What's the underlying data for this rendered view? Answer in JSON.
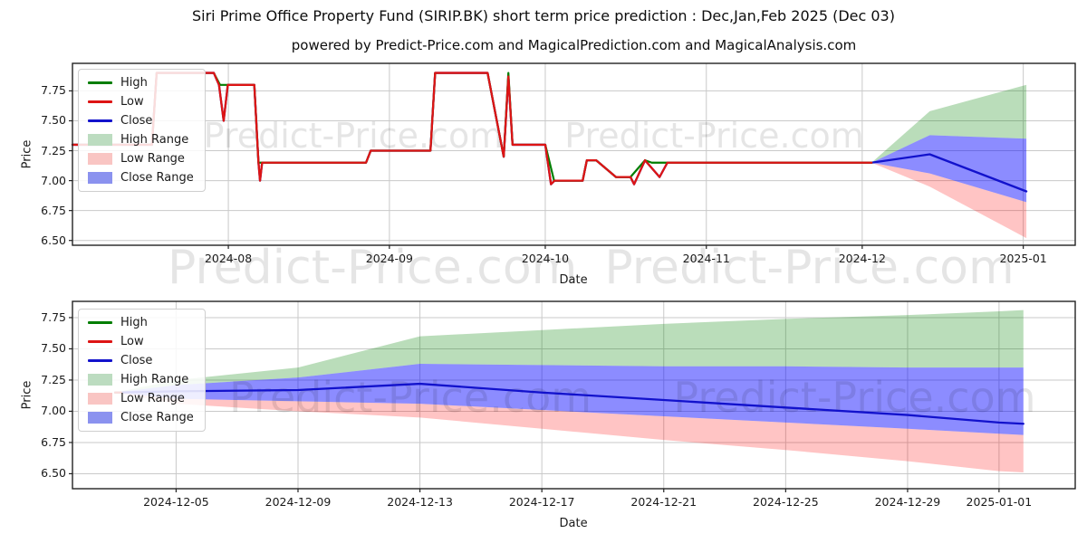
{
  "figure": {
    "title": "Siri Prime Office Property Fund (SIRIP.BK) short term price prediction : Dec,Jan,Feb 2025 (Dec 03)",
    "subtitle": "powered by Predict-Price.com and MagicalPrediction.com and MagicalAnalysis.com",
    "watermark": "Predict-Price.com",
    "background": "#ffffff",
    "gridline_color": "#c9c9c9",
    "spine_color": "#222222"
  },
  "legend": {
    "entries": [
      {
        "label": "High",
        "swatch": "line",
        "color": "#007d00"
      },
      {
        "label": "Low",
        "swatch": "line",
        "color": "#dd1414"
      },
      {
        "label": "Close",
        "swatch": "line",
        "color": "#1212cc"
      },
      {
        "label": "High Range",
        "swatch": "patch",
        "color": "#bcdcc0"
      },
      {
        "label": "Low Range",
        "swatch": "patch",
        "color": "#f9c5c3"
      },
      {
        "label": "Close Range",
        "swatch": "patch",
        "color": "#8b92ef"
      }
    ]
  },
  "chart_data": [
    {
      "type": "line",
      "title": "Historical prices Jul 2024 - Dec 03 2024 with Dec-Jan prediction fan",
      "xlabel": "Date",
      "ylabel": "Price",
      "x_range": [
        0,
        193
      ],
      "x_epoch": "days since 2024-07-02",
      "ylim": [
        6.46,
        7.98
      ],
      "yticks": [
        {
          "value": 6.5,
          "label": "6.50"
        },
        {
          "value": 6.75,
          "label": "6.75"
        },
        {
          "value": 7.0,
          "label": "7.00"
        },
        {
          "value": 7.25,
          "label": "7.25"
        },
        {
          "value": 7.5,
          "label": "7.50"
        },
        {
          "value": 7.75,
          "label": "7.75"
        }
      ],
      "xticks": [
        {
          "day": 30,
          "label": "2024-08"
        },
        {
          "day": 61,
          "label": "2024-09"
        },
        {
          "day": 91,
          "label": "2024-10"
        },
        {
          "day": 122,
          "label": "2024-11"
        },
        {
          "day": 152,
          "label": "2024-12"
        },
        {
          "day": 183,
          "label": "2025-01"
        }
      ],
      "series": [
        {
          "name": "High Range",
          "kind": "band",
          "color": "rgba(0,128,0,0.27)",
          "upper": [
            [
              153.8,
              7.15
            ],
            [
              165,
              7.58
            ],
            [
              183.6,
              7.8
            ]
          ],
          "lower": [
            [
              153.8,
              7.15
            ],
            [
              165,
              7.38
            ],
            [
              183.6,
              7.35
            ]
          ]
        },
        {
          "name": "Low Range",
          "kind": "band",
          "color": "rgba(255,0,0,0.23)",
          "upper": [
            [
              153.8,
              7.15
            ],
            [
              165,
              7.06
            ],
            [
              183.6,
              6.82
            ]
          ],
          "lower": [
            [
              153.8,
              7.15
            ],
            [
              165,
              6.95
            ],
            [
              183.6,
              6.52
            ]
          ]
        },
        {
          "name": "Close Range",
          "kind": "band",
          "color": "rgba(0,0,255,0.45)",
          "upper": [
            [
              153.8,
              7.15
            ],
            [
              165,
              7.38
            ],
            [
              183.6,
              7.35
            ]
          ],
          "lower": [
            [
              153.8,
              7.15
            ],
            [
              165,
              7.06
            ],
            [
              183.6,
              6.82
            ]
          ]
        },
        {
          "name": "Close",
          "kind": "line",
          "color": "#1212cc",
          "width": 2.3,
          "points": [
            [
              0,
              7.3
            ],
            [
              15.3,
              7.3
            ],
            [
              16.2,
              7.9
            ],
            [
              27.2,
              7.9
            ],
            [
              28.2,
              7.8
            ],
            [
              29.1,
              7.5
            ],
            [
              29.9,
              7.8
            ],
            [
              35,
              7.8
            ],
            [
              35.8,
              7.15
            ],
            [
              36.1,
              7.0
            ],
            [
              36.5,
              7.15
            ],
            [
              56.5,
              7.15
            ],
            [
              57.4,
              7.25
            ],
            [
              68.9,
              7.25
            ],
            [
              69.8,
              7.9
            ],
            [
              79.9,
              7.9
            ],
            [
              83,
              7.2
            ],
            [
              83.9,
              7.87
            ],
            [
              84.7,
              7.3
            ],
            [
              91,
              7.3
            ],
            [
              92.1,
              6.97
            ],
            [
              92.8,
              7.0
            ],
            [
              98.2,
              7.0
            ],
            [
              99,
              7.17
            ],
            [
              100.8,
              7.17
            ],
            [
              104.6,
              7.03
            ],
            [
              107.4,
              7.03
            ],
            [
              108.1,
              6.97
            ],
            [
              110.2,
              7.17
            ],
            [
              113,
              7.03
            ],
            [
              114.5,
              7.15
            ],
            [
              153.8,
              7.15
            ],
            [
              165,
              7.22
            ],
            [
              183.6,
              6.91
            ]
          ]
        },
        {
          "name": "High",
          "kind": "line",
          "color": "#007d00",
          "width": 2.2,
          "points": [
            [
              0,
              7.3
            ],
            [
              15.3,
              7.3
            ],
            [
              16.2,
              7.9
            ],
            [
              27.2,
              7.9
            ],
            [
              28.4,
              7.8
            ],
            [
              35,
              7.8
            ],
            [
              35.8,
              7.15
            ],
            [
              56.5,
              7.15
            ],
            [
              57.4,
              7.25
            ],
            [
              68.9,
              7.25
            ],
            [
              69.8,
              7.9
            ],
            [
              79.9,
              7.9
            ],
            [
              83,
              7.2
            ],
            [
              83.9,
              7.9
            ],
            [
              84.7,
              7.3
            ],
            [
              91,
              7.3
            ],
            [
              92.7,
              7.0
            ],
            [
              98.2,
              7.0
            ],
            [
              99,
              7.17
            ],
            [
              100.8,
              7.17
            ],
            [
              104.6,
              7.03
            ],
            [
              107.4,
              7.03
            ],
            [
              110.2,
              7.17
            ],
            [
              111.5,
              7.15
            ],
            [
              153.8,
              7.15
            ]
          ]
        },
        {
          "name": "Low",
          "kind": "line",
          "color": "#dd1414",
          "width": 2.3,
          "points": [
            [
              0,
              7.3
            ],
            [
              15.3,
              7.3
            ],
            [
              16.2,
              7.9
            ],
            [
              27.2,
              7.9
            ],
            [
              28.2,
              7.8
            ],
            [
              29.1,
              7.5
            ],
            [
              29.9,
              7.8
            ],
            [
              35,
              7.8
            ],
            [
              35.8,
              7.15
            ],
            [
              36.1,
              7.0
            ],
            [
              36.5,
              7.15
            ],
            [
              56.5,
              7.15
            ],
            [
              57.4,
              7.25
            ],
            [
              68.9,
              7.25
            ],
            [
              69.8,
              7.9
            ],
            [
              79.9,
              7.9
            ],
            [
              83,
              7.2
            ],
            [
              83.9,
              7.87
            ],
            [
              84.7,
              7.3
            ],
            [
              91,
              7.3
            ],
            [
              92.1,
              6.97
            ],
            [
              92.8,
              7.0
            ],
            [
              98.2,
              7.0
            ],
            [
              99,
              7.17
            ],
            [
              100.8,
              7.17
            ],
            [
              104.6,
              7.03
            ],
            [
              107.4,
              7.03
            ],
            [
              108.1,
              6.97
            ],
            [
              110.2,
              7.17
            ],
            [
              113,
              7.03
            ],
            [
              114.5,
              7.15
            ],
            [
              153.8,
              7.15
            ]
          ]
        }
      ]
    },
    {
      "type": "line",
      "title": "Prediction detail Dec 2024 - Jan 2025",
      "xlabel": "Date",
      "ylabel": "Price",
      "x_range": [
        0,
        32.9
      ],
      "x_epoch": "days since 2024-12-01",
      "ylim": [
        6.38,
        7.88
      ],
      "yticks": [
        {
          "value": 6.5,
          "label": "6.50"
        },
        {
          "value": 6.75,
          "label": "6.75"
        },
        {
          "value": 7.0,
          "label": "7.00"
        },
        {
          "value": 7.25,
          "label": "7.25"
        },
        {
          "value": 7.5,
          "label": "7.50"
        },
        {
          "value": 7.75,
          "label": "7.75"
        }
      ],
      "xticks": [
        {
          "day": 3.4,
          "label": "2024-12-05"
        },
        {
          "day": 7.4,
          "label": "2024-12-09"
        },
        {
          "day": 11.4,
          "label": "2024-12-13"
        },
        {
          "day": 15.4,
          "label": "2024-12-17"
        },
        {
          "day": 19.4,
          "label": "2024-12-21"
        },
        {
          "day": 23.4,
          "label": "2024-12-25"
        },
        {
          "day": 27.4,
          "label": "2024-12-29"
        },
        {
          "day": 30.4,
          "label": "2025-01-01"
        }
      ],
      "series": [
        {
          "name": "High Range",
          "kind": "band",
          "color": "rgba(0,128,0,0.27)",
          "upper": [
            [
              1.4,
              7.15
            ],
            [
              3.4,
              7.25
            ],
            [
              7.4,
              7.35
            ],
            [
              11.4,
              7.6
            ],
            [
              15.4,
              7.65
            ],
            [
              19.4,
              7.7
            ],
            [
              23.4,
              7.74
            ],
            [
              27.4,
              7.77
            ],
            [
              30.4,
              7.8
            ],
            [
              31.2,
              7.81
            ]
          ],
          "lower": [
            [
              1.4,
              7.15
            ],
            [
              3.4,
              7.21
            ],
            [
              7.4,
              7.27
            ],
            [
              11.4,
              7.38
            ],
            [
              15.4,
              7.37
            ],
            [
              19.4,
              7.36
            ],
            [
              23.4,
              7.36
            ],
            [
              27.4,
              7.35
            ],
            [
              30.4,
              7.35
            ],
            [
              31.2,
              7.35
            ]
          ]
        },
        {
          "name": "Low Range",
          "kind": "band",
          "color": "rgba(255,0,0,0.23)",
          "upper": [
            [
              1.4,
              7.15
            ],
            [
              3.4,
              7.1
            ],
            [
              7.4,
              7.08
            ],
            [
              11.4,
              7.06
            ],
            [
              15.4,
              7.01
            ],
            [
              19.4,
              6.96
            ],
            [
              23.4,
              6.91
            ],
            [
              27.4,
              6.86
            ],
            [
              30.4,
              6.82
            ],
            [
              31.2,
              6.81
            ]
          ],
          "lower": [
            [
              1.4,
              7.15
            ],
            [
              3.4,
              7.06
            ],
            [
              7.4,
              7.0
            ],
            [
              11.4,
              6.95
            ],
            [
              15.4,
              6.86
            ],
            [
              19.4,
              6.77
            ],
            [
              23.4,
              6.69
            ],
            [
              27.4,
              6.6
            ],
            [
              30.4,
              6.52
            ],
            [
              31.2,
              6.51
            ]
          ]
        },
        {
          "name": "Close Range",
          "kind": "band",
          "color": "rgba(0,0,255,0.45)",
          "upper": [
            [
              1.4,
              7.15
            ],
            [
              3.4,
              7.21
            ],
            [
              7.4,
              7.27
            ],
            [
              11.4,
              7.38
            ],
            [
              15.4,
              7.37
            ],
            [
              19.4,
              7.36
            ],
            [
              23.4,
              7.36
            ],
            [
              27.4,
              7.35
            ],
            [
              30.4,
              7.35
            ],
            [
              31.2,
              7.35
            ]
          ],
          "lower": [
            [
              1.4,
              7.15
            ],
            [
              3.4,
              7.1
            ],
            [
              7.4,
              7.08
            ],
            [
              11.4,
              7.06
            ],
            [
              15.4,
              7.01
            ],
            [
              19.4,
              6.96
            ],
            [
              23.4,
              6.91
            ],
            [
              27.4,
              6.86
            ],
            [
              30.4,
              6.82
            ],
            [
              31.2,
              6.81
            ]
          ]
        },
        {
          "name": "Close",
          "kind": "line",
          "color": "#1212cc",
          "width": 2.3,
          "points": [
            [
              1.4,
              7.15
            ],
            [
              3.4,
              7.16
            ],
            [
              7.4,
              7.17
            ],
            [
              11.4,
              7.22
            ],
            [
              15.4,
              7.15
            ],
            [
              19.4,
              7.09
            ],
            [
              23.4,
              7.03
            ],
            [
              27.4,
              6.97
            ],
            [
              30.4,
              6.91
            ],
            [
              31.2,
              6.9
            ]
          ]
        },
        {
          "name": "High",
          "kind": "line",
          "color": "#007d00",
          "width": 2.2,
          "points": [
            [
              1.4,
              7.15
            ],
            [
              1.6,
              7.15
            ]
          ]
        },
        {
          "name": "Low",
          "kind": "line",
          "color": "#dd1414",
          "width": 2.3,
          "points": [
            [
              1.4,
              7.15
            ],
            [
              1.6,
              7.15
            ]
          ]
        }
      ]
    }
  ]
}
